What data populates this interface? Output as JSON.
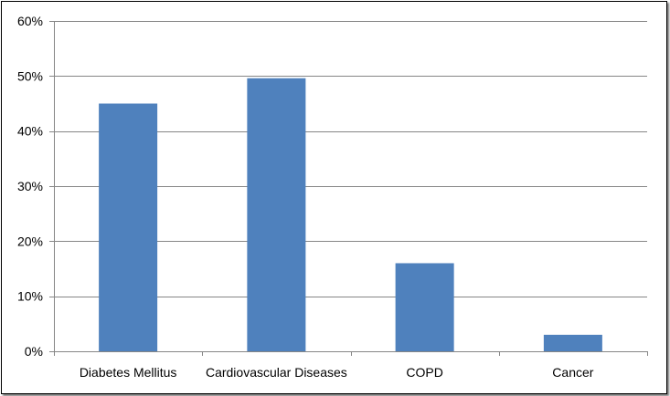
{
  "chart_data": {
    "type": "bar",
    "categories": [
      "Diabetes Mellitus",
      "Cardiovascular Diseases",
      "COPD",
      "Cancer"
    ],
    "values": [
      45,
      49.6,
      16,
      3
    ],
    "y_ticks": [
      "0%",
      "10%",
      "20%",
      "30%",
      "40%",
      "50%",
      "60%"
    ],
    "ylim": [
      0,
      60
    ],
    "y_unit": "percent",
    "grid": true,
    "legend": "none",
    "colors": {
      "bar": "#4F81BD",
      "grid": "#868686",
      "axis": "#868686"
    }
  }
}
